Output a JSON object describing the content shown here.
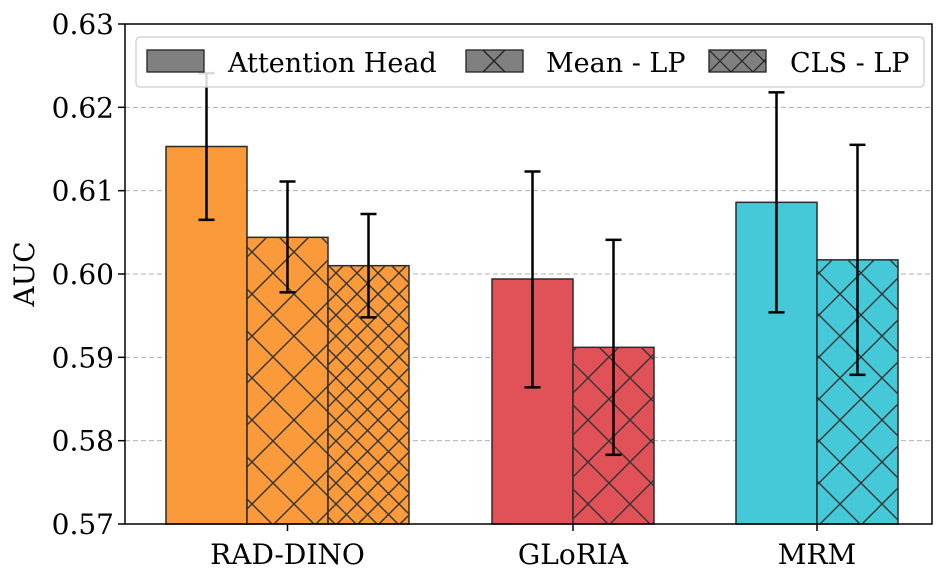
{
  "chart_data": {
    "type": "bar",
    "title": "",
    "xlabel": "",
    "ylabel": "AUC",
    "ylim": [
      0.57,
      0.63
    ],
    "yticks": [
      0.57,
      0.58,
      0.59,
      0.6,
      0.61,
      0.62,
      0.63
    ],
    "ytick_labels": [
      "0.57",
      "0.58",
      "0.59",
      "0.60",
      "0.61",
      "0.62",
      "0.63"
    ],
    "grid": "y-dashed",
    "legend_position": "top",
    "legend": [
      {
        "name": "Attention Head",
        "hatch": "none"
      },
      {
        "name": "Mean - LP",
        "hatch": "x"
      },
      {
        "name": "CLS - LP",
        "hatch": "xx"
      }
    ],
    "groups": [
      {
        "category": "RAD-DINO",
        "color": "#FA9A3A",
        "bars": [
          {
            "series": "Attention Head",
            "value": 0.6153,
            "err_low": 0.6065,
            "err_high": 0.6241
          },
          {
            "series": "Mean - LP",
            "value": 0.6044,
            "err_low": 0.5978,
            "err_high": 0.6111
          },
          {
            "series": "CLS - LP",
            "value": 0.601,
            "err_low": 0.5948,
            "err_high": 0.6072
          }
        ]
      },
      {
        "category": "GLoRIA",
        "color": "#E05257",
        "bars": [
          {
            "series": "Attention Head",
            "value": 0.5994,
            "err_low": 0.5864,
            "err_high": 0.6123
          },
          {
            "series": "Mean - LP",
            "value": 0.5912,
            "err_low": 0.5783,
            "err_high": 0.6041
          }
        ]
      },
      {
        "category": "MRM",
        "color": "#45C8D8",
        "bars": [
          {
            "series": "Attention Head",
            "value": 0.6086,
            "err_low": 0.5954,
            "err_high": 0.6218
          },
          {
            "series": "Mean - LP",
            "value": 0.6017,
            "err_low": 0.5879,
            "err_high": 0.6155
          }
        ]
      }
    ]
  }
}
